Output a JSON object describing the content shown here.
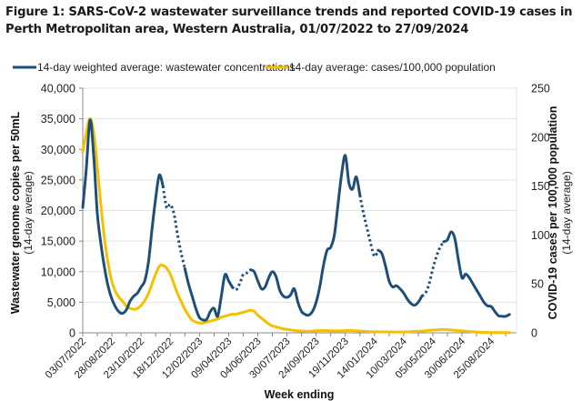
{
  "chart_data": {
    "type": "line",
    "title": "Figure 1: SARS-CoV-2 wastewater surveillance trends and reported COVID-19 cases in Perth Metropolitan area, Western Australia, 01/07/2022 to 27/09/2024",
    "xlabel": "Week ending",
    "ylabel": "Wastewater genome copies per 50mL",
    "ylabel_sub": "(14-day average)",
    "y2label": "COVID-19 cases per 100,000 population",
    "y2label_sub": "(14-day average)",
    "ylim": [
      0,
      40000
    ],
    "y2lim": [
      0,
      250
    ],
    "yticks": [
      "0",
      "5,000",
      "10,000",
      "15,000",
      "20,000",
      "25,000",
      "30,000",
      "35,000",
      "40,000"
    ],
    "y2ticks": [
      "0",
      "50",
      "100",
      "150",
      "200",
      "250"
    ],
    "grid": true,
    "legend_position": "top",
    "x_tick_labels": [
      "03/07/2022",
      "28/08/2022",
      "23/10/2022",
      "18/12/2022",
      "12/02/2023",
      "09/04/2023",
      "04/06/2023",
      "30/07/2023",
      "24/09/2023",
      "19/11/2023",
      "14/01/2024",
      "10/03/2024",
      "05/05/2024",
      "30/06/2024",
      "25/08/2024"
    ],
    "x_weeks_start": "03/07/2022",
    "x_week_count": 118,
    "series": [
      {
        "name": "14-day weighted average: wastewater concentrations",
        "axis": "left",
        "color": "#1f4e79",
        "values": [
          20500,
          27000,
          34800,
          29000,
          19500,
          14500,
          10500,
          7500,
          5500,
          4200,
          3400,
          3200,
          3800,
          5200,
          6000,
          6500,
          7500,
          8500,
          11500,
          17000,
          22000,
          25800,
          24000,
          20500,
          21000,
          19500,
          16000,
          13000,
          10500,
          8000,
          6000,
          4000,
          2500,
          2100,
          2200,
          3500,
          4000,
          2700,
          6000,
          9500,
          8500,
          7500,
          7000,
          8000,
          9500,
          9800,
          10300,
          10000,
          8500,
          7200,
          7500,
          9000,
          10000,
          9200,
          7000,
          6000,
          5800,
          6200,
          7200,
          5000,
          3500,
          3000,
          2900,
          3500,
          5000,
          7500,
          11000,
          13500,
          14000,
          16000,
          21000,
          26000,
          29000,
          24500,
          23500,
          25500,
          22500,
          19500,
          17000,
          14500,
          12500,
          13500,
          13000,
          11000,
          8500,
          7500,
          7700,
          7200,
          6500,
          5500,
          4800,
          4500,
          5000,
          6000,
          6500,
          8000,
          10500,
          12500,
          14000,
          14900,
          15200,
          16500,
          15500,
          12000,
          9000,
          9600,
          9000,
          8000,
          7000,
          6000,
          5000,
          4400,
          4300,
          3500,
          2800,
          2700,
          2700,
          3000
        ],
        "dotted_ranges": [
          [
            22,
            28
          ],
          [
            41,
            46
          ],
          [
            76,
            81
          ],
          [
            93,
            99
          ]
        ]
      },
      {
        "name": "14-day average: cases/100,000 population",
        "axis": "right",
        "color": "#f5c000",
        "values": [
          185,
          205,
          219,
          205,
          170,
          130,
          95,
          70,
          52,
          42,
          36,
          32,
          27,
          25,
          24,
          25,
          28,
          33,
          40,
          50,
          60,
          68,
          69,
          66,
          60,
          50,
          40,
          32,
          24,
          18,
          13,
          11,
          10,
          10,
          11,
          12,
          13,
          14,
          16,
          17,
          18,
          19,
          19,
          20,
          21,
          22,
          23,
          22,
          18,
          15,
          12,
          9,
          7,
          6,
          5,
          4,
          3.5,
          3,
          2.5,
          2,
          1.8,
          1.6,
          1.5,
          1.8,
          2,
          2.2,
          2.3,
          2.2,
          2,
          2,
          2,
          2,
          2.2,
          2.4,
          2.2,
          2,
          1.8,
          1.6,
          1.4,
          1.2,
          1,
          1,
          0.9,
          0.9,
          0.9,
          0.8,
          0.8,
          0.8,
          0.9,
          1,
          1.2,
          1.4,
          1.6,
          1.8,
          2.2,
          2.6,
          2.8,
          3,
          3.2,
          3.4,
          3.2,
          3,
          2.6,
          2.2,
          2,
          1.6,
          1.3,
          1,
          0.8,
          0.6,
          0.5,
          0.4,
          0.3,
          0.3,
          0.2,
          0.2,
          0.2,
          0.2
        ]
      }
    ]
  }
}
